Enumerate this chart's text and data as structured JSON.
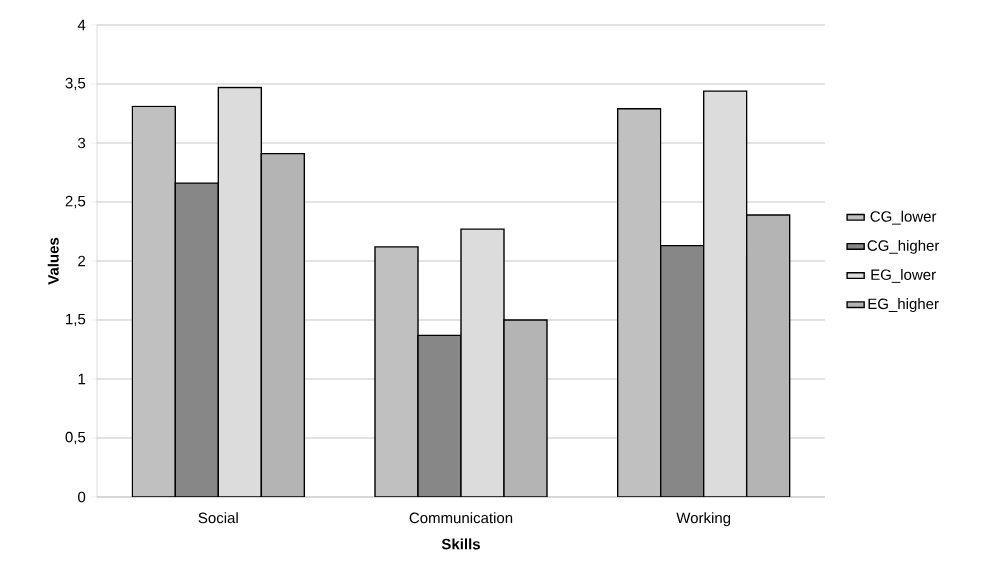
{
  "chart_data": {
    "type": "bar",
    "xlabel": "Skills",
    "ylabel": "Values",
    "categories": [
      "Social",
      "Communication",
      "Working"
    ],
    "series": [
      {
        "name": "CG_lower",
        "color": "#c0c0c0",
        "values": [
          3.31,
          2.12,
          3.29
        ]
      },
      {
        "name": "CG_higher",
        "color": "#878787",
        "values": [
          2.66,
          1.37,
          2.13
        ]
      },
      {
        "name": "EG_lower",
        "color": "#dcdcdc",
        "values": [
          3.47,
          2.27,
          3.44
        ]
      },
      {
        "name": "EG_higher",
        "color": "#b4b4b4",
        "values": [
          2.91,
          1.5,
          2.39
        ]
      }
    ],
    "ylim": [
      0,
      4
    ],
    "yticks": [
      0,
      {
        "value": 0.5,
        "label": "0,5"
      },
      1,
      {
        "value": 1.5,
        "label": "1,5"
      },
      2,
      {
        "value": 2.5,
        "label": "2,5"
      },
      3,
      {
        "value": 3.5,
        "label": "3,5"
      },
      4
    ],
    "grid": "y",
    "legend": "right"
  }
}
